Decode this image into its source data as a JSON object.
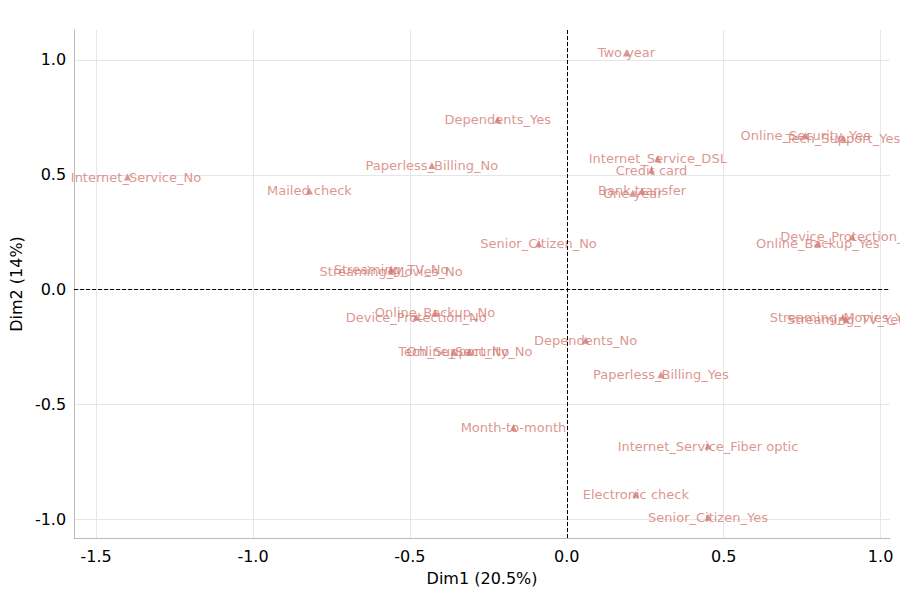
{
  "chart_data": {
    "type": "scatter",
    "x_label": "Dim1 (20.5%)",
    "y_label": "Dim2 (14%)",
    "color": "#d37a73",
    "marker": "triangle",
    "grid": true,
    "xlim": [
      -1.57,
      1.03
    ],
    "ylim": [
      -1.08,
      1.13
    ],
    "xticks": [
      -1.5,
      {
        "value": -1,
        "label": "-1.0"
      },
      -0.5,
      {
        "value": 0,
        "label": "0.0"
      },
      0.5,
      {
        "value": 1,
        "label": "1.0"
      }
    ],
    "yticks": [
      {
        "value": -1,
        "label": "-1.0"
      },
      -0.5,
      {
        "value": 0,
        "label": "0.0"
      },
      0.5,
      {
        "value": 1,
        "label": "1.0"
      }
    ],
    "hlines": [
      0
    ],
    "vlines": [
      0
    ],
    "labels": [
      "Internet_Service_No",
      "Mailed check",
      "Paperless_Billing_No",
      "Dependents_Yes",
      "Two year",
      "Online_Security_Yes",
      "Tech_Support_Yes",
      "Internet_Service_DSL",
      "Credit card",
      "Bank transfer",
      "One year",
      "Senior_Citizen_No",
      "Device_Protection_Yes",
      "Online_Backup_Yes",
      "Streaming_TV_No",
      "Streaming_Movies_No",
      "Online_Backup_No",
      "Device_Protection_No",
      "Streaming_Movies_Yes",
      "Streaming_TV_Yes",
      "Online_Security_No",
      "Tech_Support_No",
      "Dependents_No",
      "Paperless_Billing_Yes",
      "Month-to-month",
      "Internet_Service_Fiber optic",
      "Electronic check",
      "Senior_Citizen_Yes"
    ],
    "x": [
      -1.4,
      -0.82,
      -0.43,
      -0.22,
      0.19,
      0.76,
      0.88,
      0.29,
      0.27,
      0.24,
      0.21,
      -0.09,
      0.91,
      0.8,
      -0.56,
      -0.56,
      -0.42,
      -0.48,
      0.88,
      0.89,
      -0.31,
      -0.36,
      0.06,
      0.3,
      -0.17,
      0.45,
      0.22,
      0.45
    ],
    "y": [
      0.49,
      0.43,
      0.54,
      0.74,
      1.03,
      0.67,
      0.66,
      0.57,
      0.52,
      0.43,
      0.42,
      0.2,
      0.23,
      0.2,
      0.09,
      0.08,
      -0.1,
      -0.12,
      -0.12,
      -0.13,
      -0.27,
      -0.27,
      -0.22,
      -0.37,
      -0.6,
      -0.68,
      -0.89,
      -0.99
    ]
  }
}
